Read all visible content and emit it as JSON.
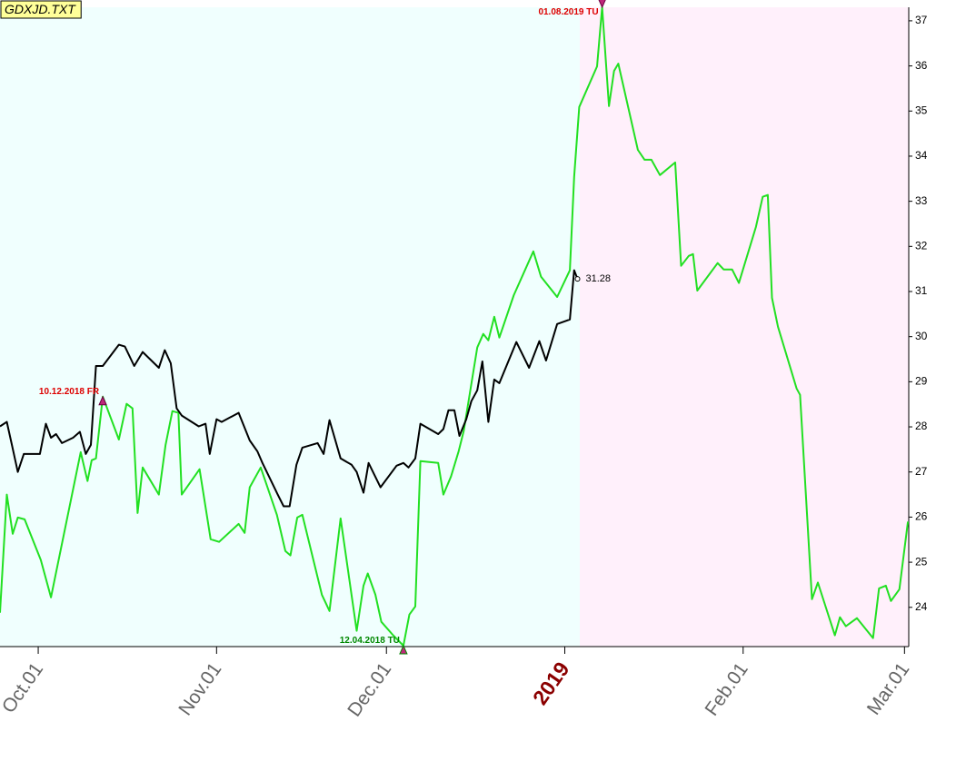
{
  "chart_data": {
    "type": "line",
    "title": "GDXJD.TXT",
    "xlim": [
      -0.5,
      106.5
    ],
    "xticks": [
      {
        "value": 4,
        "label": "Oct.01"
      },
      {
        "value": 25,
        "label": "Nov.01"
      },
      {
        "value": 45,
        "label": "Dec.01"
      },
      {
        "value": 66,
        "label": "2019"
      },
      {
        "value": 87,
        "label": "Feb.01"
      },
      {
        "value": 106,
        "label": "Mar.01"
      }
    ],
    "ylim": [
      23.13,
      37.3
    ],
    "yticks": [
      24,
      25,
      26,
      27,
      28,
      29,
      30,
      31,
      32,
      33,
      34,
      35,
      36,
      37
    ],
    "grid": false,
    "series": [
      {
        "color": "#22e022",
        "x": [
          -0.5,
          0.3,
          1.0,
          1.6,
          2.4,
          4.3,
          5.5,
          9.0,
          9.8,
          10.3,
          10.8,
          11.6,
          13.5,
          14.4,
          15.1,
          15.7,
          16.3,
          18.2,
          19.0,
          19.8,
          20.5,
          20.9,
          23.0,
          24.3,
          25.3,
          27.6,
          28.3,
          28.9,
          30.2,
          32.1,
          33.1,
          33.7,
          34.5,
          35.1,
          37.4,
          38.3,
          39.6,
          41.5,
          42.3,
          42.8,
          43.7,
          44.4,
          45.8,
          47.0,
          47.7,
          48.4,
          49.0,
          51.1,
          51.7,
          52.6,
          53.5,
          54.1,
          55.7,
          56.4,
          57.0,
          57.7,
          58.3,
          60.0,
          62.3,
          63.2,
          65.1,
          66.6,
          67.1,
          67.7,
          69.8,
          70.4,
          71.2,
          71.8,
          72.3,
          74.6,
          75.4,
          76.2,
          77.2,
          79.0,
          79.7,
          80.6,
          81.1,
          81.6,
          84.0,
          84.7,
          85.7,
          86.5,
          88.5,
          89.3,
          89.9,
          90.4,
          91.1,
          93.3,
          93.7,
          95.1,
          95.8,
          97.8,
          98.4,
          99.1,
          100.4,
          102.3,
          103.0,
          103.8,
          104.4,
          105.4,
          106.4
        ],
        "values": [
          23.88,
          26.5,
          25.63,
          25.99,
          25.95,
          25.05,
          24.22,
          27.44,
          26.8,
          27.26,
          27.3,
          28.67,
          27.72,
          28.51,
          28.41,
          26.09,
          27.1,
          26.5,
          27.6,
          28.35,
          28.31,
          26.5,
          27.06,
          25.51,
          25.45,
          25.85,
          25.65,
          26.66,
          27.1,
          26.05,
          25.25,
          25.15,
          25.99,
          26.05,
          24.28,
          23.92,
          25.97,
          23.48,
          24.48,
          24.75,
          24.28,
          23.68,
          23.38,
          23.15,
          23.84,
          24.02,
          27.24,
          27.2,
          26.5,
          26.9,
          27.46,
          27.91,
          29.76,
          30.06,
          29.92,
          30.44,
          29.98,
          30.92,
          31.89,
          31.33,
          30.88,
          31.47,
          33.54,
          35.09,
          35.99,
          37.3,
          35.11,
          35.89,
          36.05,
          34.14,
          33.92,
          33.92,
          33.58,
          33.86,
          31.57,
          31.79,
          31.83,
          31.02,
          31.63,
          31.49,
          31.49,
          31.19,
          32.43,
          33.1,
          33.14,
          30.86,
          30.22,
          28.85,
          28.71,
          24.18,
          24.55,
          23.38,
          23.78,
          23.58,
          23.76,
          23.32,
          24.42,
          24.48,
          24.14,
          24.4,
          25.9
        ]
      },
      {
        "color": "#000000",
        "x": [
          -0.5,
          0.3,
          0.9,
          1.6,
          2.3,
          4.2,
          4.9,
          5.5,
          6.1,
          6.8,
          8.1,
          8.9,
          9.6,
          10.2,
          10.8,
          11.6,
          13.5,
          14.2,
          15.3,
          16.3,
          18.2,
          18.9,
          19.6,
          20.3,
          20.9,
          22.9,
          23.7,
          24.2,
          25.0,
          25.6,
          27.6,
          28.9,
          29.8,
          30.4,
          32.2,
          32.9,
          33.6,
          34.4,
          35.1,
          36.9,
          37.6,
          38.3,
          39.6,
          40.9,
          41.5,
          42.3,
          42.9,
          44.3,
          46.2,
          47.0,
          47.6,
          48.4,
          49.0,
          51.1,
          51.7,
          52.3,
          53.0,
          53.6,
          54.4,
          55.0,
          55.7,
          56.3,
          57.0,
          57.7,
          58.3,
          60.3,
          61.8,
          63.0,
          63.8,
          65.1,
          66.6,
          67.1,
          67.5
        ],
        "values": [
          28.01,
          28.11,
          27.6,
          27.0,
          27.4,
          27.4,
          28.07,
          27.76,
          27.84,
          27.64,
          27.76,
          27.89,
          27.4,
          27.6,
          29.35,
          29.35,
          29.82,
          29.78,
          29.35,
          29.66,
          29.31,
          29.7,
          29.41,
          28.41,
          28.25,
          28.01,
          28.07,
          27.4,
          28.17,
          28.11,
          28.31,
          27.7,
          27.46,
          27.2,
          26.5,
          26.24,
          26.24,
          27.16,
          27.54,
          27.64,
          27.4,
          28.15,
          27.3,
          27.16,
          27.0,
          26.54,
          27.2,
          26.66,
          27.14,
          27.2,
          27.1,
          27.3,
          28.07,
          27.84,
          27.95,
          28.37,
          28.37,
          27.8,
          28.17,
          28.57,
          28.81,
          29.45,
          28.11,
          29.05,
          28.97,
          29.88,
          29.31,
          29.9,
          29.47,
          30.28,
          30.38,
          31.47,
          31.28
        ]
      }
    ],
    "annotations": [
      {
        "text": "10.12.2018 FR",
        "x": 11.6,
        "y": 28.67,
        "color": "#dd0000"
      },
      {
        "text": "01.08.2019 TU",
        "x": 70.4,
        "y": 37.3,
        "color": "#dd0000"
      },
      {
        "text": "12.04.2018 TU",
        "x": 47.0,
        "y": 23.15,
        "color": "#008800"
      }
    ]
  }
}
